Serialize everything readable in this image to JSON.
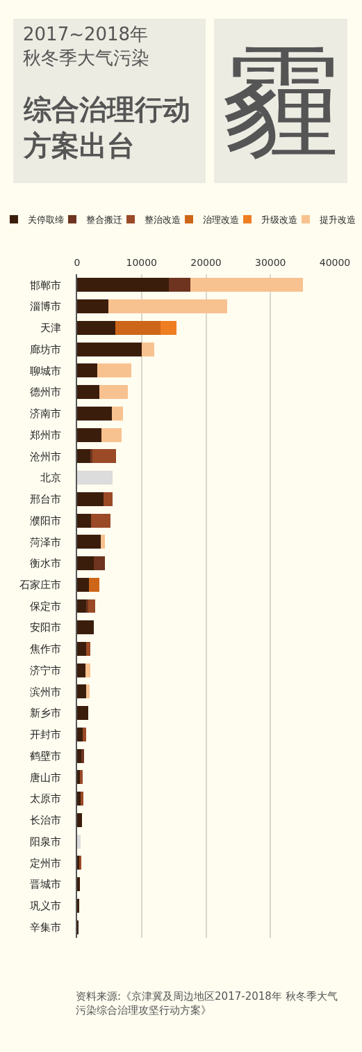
{
  "chart_data": {
    "type": "bar",
    "orientation": "horizontal",
    "stacked": true,
    "title": "2017~2018年秋冬季大气污染",
    "subtitle": "综合治理行动方案出台",
    "annotations": [
      "霾",
      "资料来源:《京津冀及周边地区2017-2018年 秋冬季大气污染综合治理攻坚行动方案》"
    ],
    "categories": [
      "邯郸市",
      "淄博市",
      "天津",
      "廊坊市",
      "聊城市",
      "德州市",
      "济南市",
      "郑州市",
      "沧州市",
      "北京",
      "邢台市",
      "濮阳市",
      "菏泽市",
      "衡水市",
      "石家庄市",
      "保定市",
      "安阳市",
      "焦作市",
      "济宁市",
      "滨州市",
      "新乡市",
      "开封市",
      "鹤壁市",
      "唐山市",
      "太原市",
      "长治市",
      "阳泉市",
      "定州市",
      "晋城市",
      "巩义市",
      "辛集市"
    ],
    "series": [
      {
        "name": "关停取缔",
        "color": "#3a1e0b",
        "values": [
          14200,
          4800,
          5900,
          10000,
          3100,
          3500,
          5400,
          3800,
          2000,
          null,
          4100,
          2200,
          3700,
          2600,
          1800,
          1400,
          2600,
          1400,
          1300,
          1400,
          1700,
          900,
          700,
          400,
          500,
          800,
          null,
          400,
          400,
          300,
          200
        ]
      },
      {
        "name": "整合搬迁",
        "color": "#6e3420",
        "values": [
          3400,
          null,
          null,
          null,
          null,
          null,
          null,
          null,
          400,
          null,
          null,
          null,
          null,
          1700,
          null,
          300,
          null,
          null,
          null,
          null,
          null,
          null,
          400,
          null,
          null,
          null,
          null,
          null,
          null,
          null,
          null
        ]
      },
      {
        "name": "整治改造",
        "color": "#9a4a26",
        "values": [
          null,
          null,
          null,
          null,
          null,
          null,
          null,
          null,
          3600,
          null,
          1400,
          3000,
          null,
          null,
          null,
          1100,
          null,
          700,
          null,
          null,
          null,
          500,
          null,
          500,
          500,
          null,
          null,
          200,
          null,
          null,
          null
        ]
      },
      {
        "name": "治理改造",
        "color": "#cd6618",
        "values": [
          null,
          null,
          7000,
          null,
          null,
          null,
          null,
          null,
          null,
          null,
          null,
          null,
          null,
          null,
          1600,
          null,
          null,
          null,
          null,
          null,
          null,
          null,
          null,
          null,
          null,
          null,
          null,
          null,
          null,
          null,
          null
        ]
      },
      {
        "name": "升级改造",
        "color": "#ef7d22",
        "values": [
          null,
          null,
          2500,
          null,
          null,
          null,
          null,
          null,
          null,
          null,
          null,
          null,
          null,
          null,
          null,
          null,
          null,
          null,
          null,
          null,
          null,
          null,
          null,
          null,
          null,
          null,
          null,
          null,
          null,
          null,
          null
        ]
      },
      {
        "name": "提升改造",
        "color": "#f8c290",
        "values": [
          17400,
          18500,
          null,
          2000,
          5300,
          4400,
          1700,
          3100,
          null,
          null,
          null,
          null,
          600,
          null,
          null,
          null,
          null,
          null,
          700,
          500,
          null,
          null,
          null,
          null,
          null,
          null,
          null,
          null,
          null,
          null,
          null
        ]
      },
      {
        "color": "#dcdcdc",
        "values": [
          null,
          null,
          null,
          null,
          null,
          null,
          null,
          null,
          null,
          5500,
          null,
          null,
          null,
          null,
          null,
          null,
          null,
          null,
          null,
          null,
          null,
          null,
          null,
          null,
          null,
          null,
          500,
          null,
          null,
          null,
          null
        ]
      }
    ],
    "xlim": [
      0,
      40000
    ],
    "xticks": [
      0,
      10000,
      20000,
      30000,
      40000
    ],
    "grid": "x",
    "legend": "top"
  }
}
